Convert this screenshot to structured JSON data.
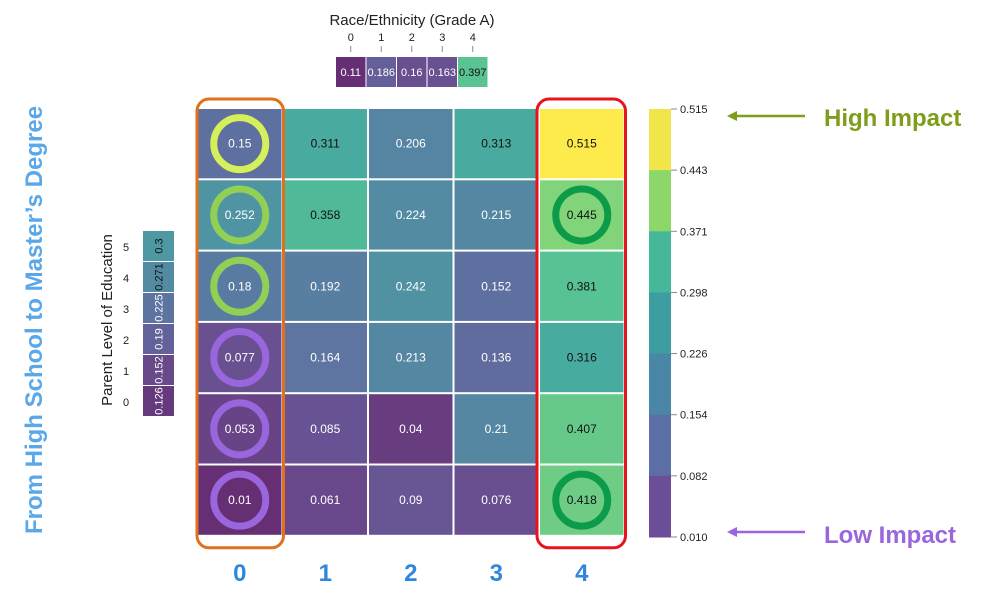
{
  "chart_data": {
    "type": "heatmap",
    "title": "",
    "xlabel": "",
    "ylabel": "",
    "x_categories": [
      "0",
      "1",
      "2",
      "3",
      "4"
    ],
    "y_categories_top_to_bottom": [
      "5",
      "4",
      "3",
      "2",
      "1",
      "0"
    ],
    "values": [
      [
        0.15,
        0.311,
        0.206,
        0.313,
        0.515
      ],
      [
        0.252,
        0.358,
        0.224,
        0.215,
        0.445
      ],
      [
        0.18,
        0.192,
        0.242,
        0.152,
        0.381
      ],
      [
        0.077,
        0.164,
        0.213,
        0.136,
        0.316
      ],
      [
        0.053,
        0.085,
        0.04,
        0.21,
        0.407
      ],
      [
        0.01,
        0.061,
        0.09,
        0.076,
        0.418
      ]
    ],
    "labels": [
      [
        "0.15",
        "0.311",
        "0.206",
        "0.313",
        "0.515"
      ],
      [
        "0.252",
        "0.358",
        "0.224",
        "0.215",
        "0.445"
      ],
      [
        "0.18",
        "0.192",
        "0.242",
        "0.152",
        "0.381"
      ],
      [
        "0.077",
        "0.164",
        "0.213",
        "0.136",
        "0.316"
      ],
      [
        "0.053",
        "0.085",
        "0.04",
        "0.21",
        "0.407"
      ],
      [
        "0.01",
        "0.061",
        "0.09",
        "0.076",
        "0.418"
      ]
    ],
    "bottom_axis_labels": [
      "0",
      "1",
      "2",
      "3",
      "4"
    ],
    "vmin": 0.01,
    "vmax": 0.515,
    "colorbar": {
      "ticks": [
        "0.515",
        "0.443",
        "0.371",
        "0.298",
        "0.226",
        "0.154",
        "0.082",
        "0.010"
      ],
      "colors_top_to_bottom": [
        "#f0e54a",
        "#8dd66a",
        "#46b89a",
        "#3c9ea0",
        "#4a86a6",
        "#5b6ea6",
        "#6c4d98"
      ]
    },
    "marginal_top": {
      "title": "Race/Ethnicity (Grade A)",
      "categories": [
        "0",
        "1",
        "2",
        "3",
        "4"
      ],
      "values": [
        0.11,
        0.186,
        0.16,
        0.163,
        0.397
      ],
      "labels": [
        "0.11",
        "0.186",
        "0.16",
        "0.163",
        "0.397"
      ]
    },
    "marginal_left": {
      "title": "Parent Level of Education",
      "categories": [
        "5",
        "4",
        "3",
        "2",
        "1",
        "0"
      ],
      "values": [
        0.3,
        0.271,
        0.225,
        0.19,
        0.152,
        0.126
      ],
      "labels": [
        "0.3",
        "0.271",
        "0.225",
        "0.19",
        "0.152",
        "0.126"
      ]
    },
    "annotations": {
      "high_impact": "High Impact",
      "low_impact": "Low Impact",
      "side_text": "From High School to Master’s Degree"
    },
    "circled_cells": [
      {
        "row": 0,
        "col": 0,
        "color": "#d7ef5a"
      },
      {
        "row": 1,
        "col": 0,
        "color": "#92d055"
      },
      {
        "row": 2,
        "col": 0,
        "color": "#92d055"
      },
      {
        "row": 3,
        "col": 0,
        "color": "#9966dd"
      },
      {
        "row": 4,
        "col": 0,
        "color": "#9966dd"
      },
      {
        "row": 5,
        "col": 0,
        "color": "#9966dd"
      },
      {
        "row": 1,
        "col": 4,
        "color": "#0c9b49"
      },
      {
        "row": 5,
        "col": 4,
        "color": "#0c9b49"
      }
    ],
    "highlight_colors": {
      "left_box": "#e0701c",
      "right_box": "#e8131b",
      "high_arrow": "#7f9d1c",
      "low_arrow": "#9966dd",
      "side_text": "#5aa8ea",
      "bottom_labels": "#2e86de"
    }
  }
}
